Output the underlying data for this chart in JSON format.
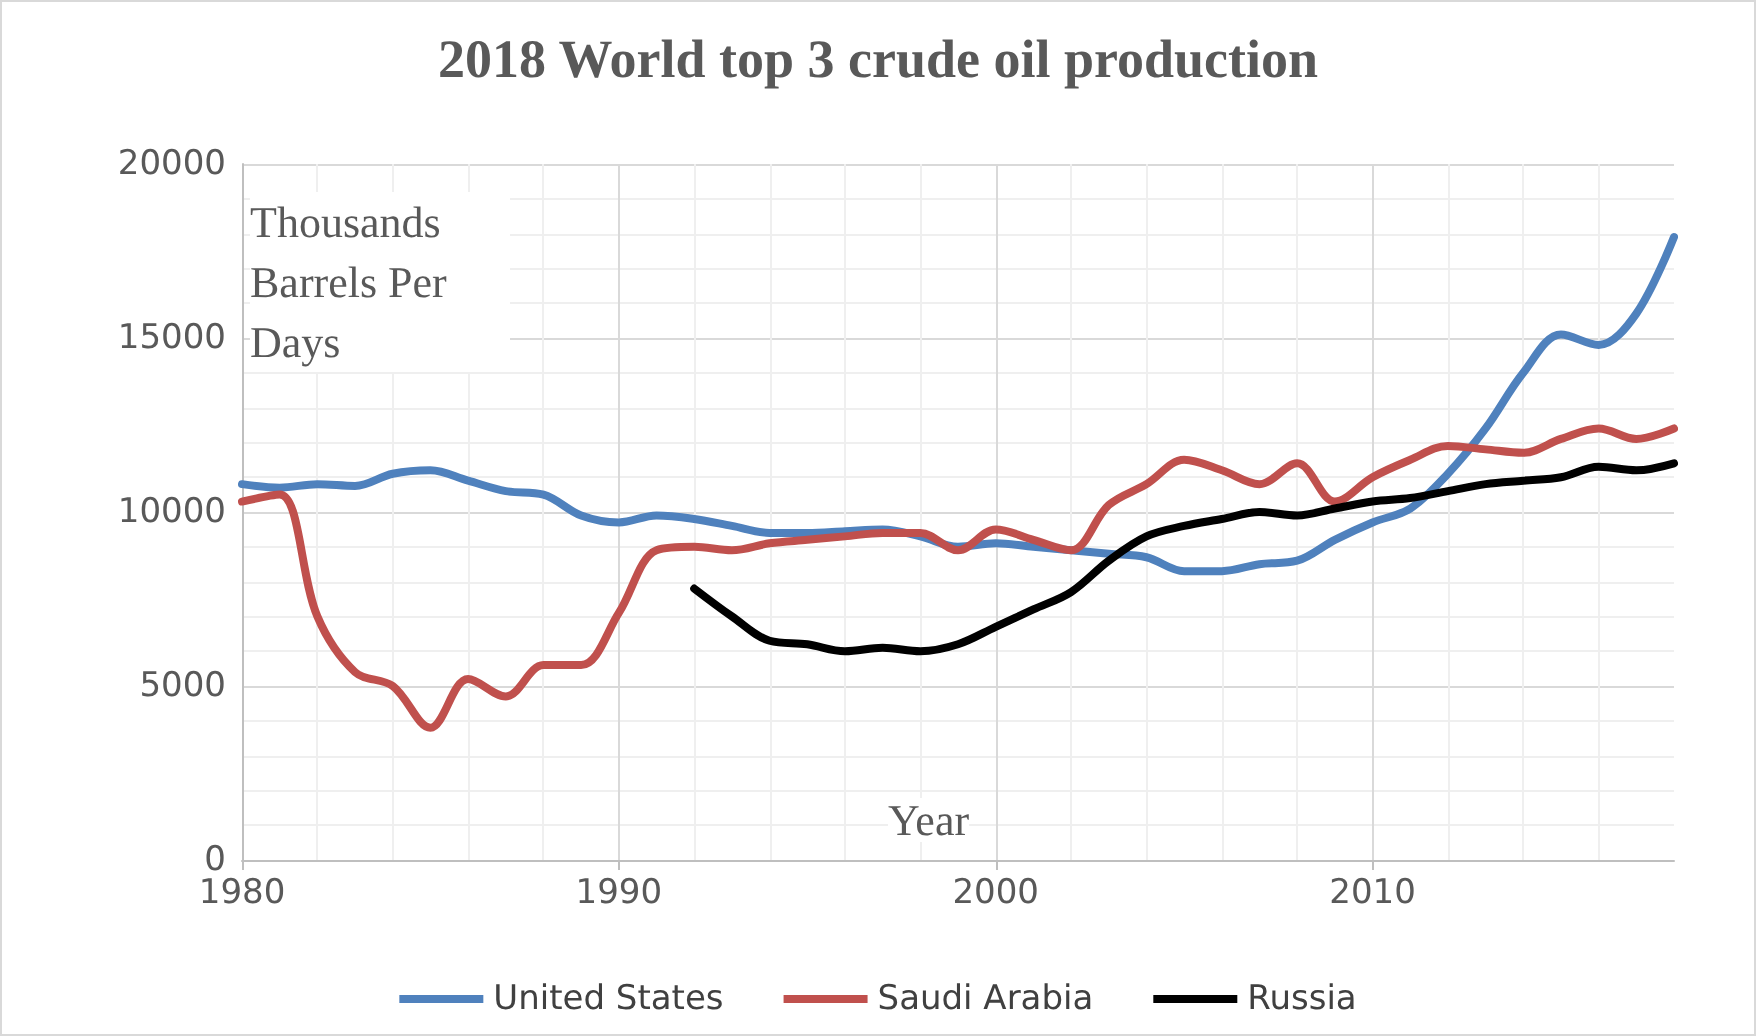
{
  "chart_data": {
    "type": "line",
    "title": "2018 World top 3 crude oil production",
    "xlabel": "Year",
    "ylabel": "Thousands Barrels Per Days",
    "x": [
      1980,
      1981,
      1982,
      1983,
      1984,
      1985,
      1986,
      1987,
      1988,
      1989,
      1990,
      1991,
      1992,
      1993,
      1994,
      1995,
      1996,
      1997,
      1998,
      1999,
      2000,
      2001,
      2002,
      2003,
      2004,
      2005,
      2006,
      2007,
      2008,
      2009,
      2010,
      2011,
      2012,
      2013,
      2014,
      2015,
      2016,
      2017,
      2018
    ],
    "series": [
      {
        "name": "United States",
        "color": "#4f81bd",
        "values": [
          10800,
          10700,
          10800,
          10750,
          11100,
          11200,
          10900,
          10600,
          10500,
          9900,
          9700,
          9900,
          9800,
          9600,
          9400,
          9400,
          9450,
          9500,
          9300,
          9000,
          9100,
          9000,
          8900,
          8800,
          8700,
          8300,
          8300,
          8500,
          8600,
          9200,
          9700,
          10100,
          11100,
          12400,
          14000,
          15100,
          14800,
          15700,
          17900
        ]
      },
      {
        "name": "Saudi Arabia",
        "color": "#c0504d",
        "values": [
          10300,
          10500,
          7000,
          5400,
          5000,
          3800,
          5200,
          4700,
          5600,
          5600,
          7100,
          8900,
          9000,
          8900,
          9100,
          9200,
          9300,
          9400,
          9400,
          8900,
          9500,
          9200,
          8900,
          10200,
          10800,
          11500,
          11200,
          10800,
          11400,
          10300,
          11000,
          11500,
          11900,
          11800,
          11700,
          12100,
          12400,
          12100,
          12400
        ]
      },
      {
        "name": "Russia",
        "color": "#000000",
        "values": [
          null,
          null,
          null,
          null,
          null,
          null,
          null,
          null,
          null,
          null,
          null,
          null,
          7800,
          7000,
          6300,
          6200,
          6000,
          6100,
          6000,
          6200,
          6700,
          7200,
          7700,
          8600,
          9300,
          9600,
          9800,
          10000,
          9900,
          10100,
          10300,
          10400,
          10600,
          10800,
          10900,
          11000,
          11300,
          11200,
          11400
        ]
      }
    ],
    "xlim": [
      1980,
      2018
    ],
    "xticks": [
      1980,
      1990,
      2000,
      2010
    ],
    "ylim": [
      0,
      20000
    ],
    "yticks": [
      0,
      5000,
      10000,
      15000,
      20000
    ],
    "grid": true,
    "legend": "bottom",
    "marker": "none",
    "line_style": "solid"
  }
}
